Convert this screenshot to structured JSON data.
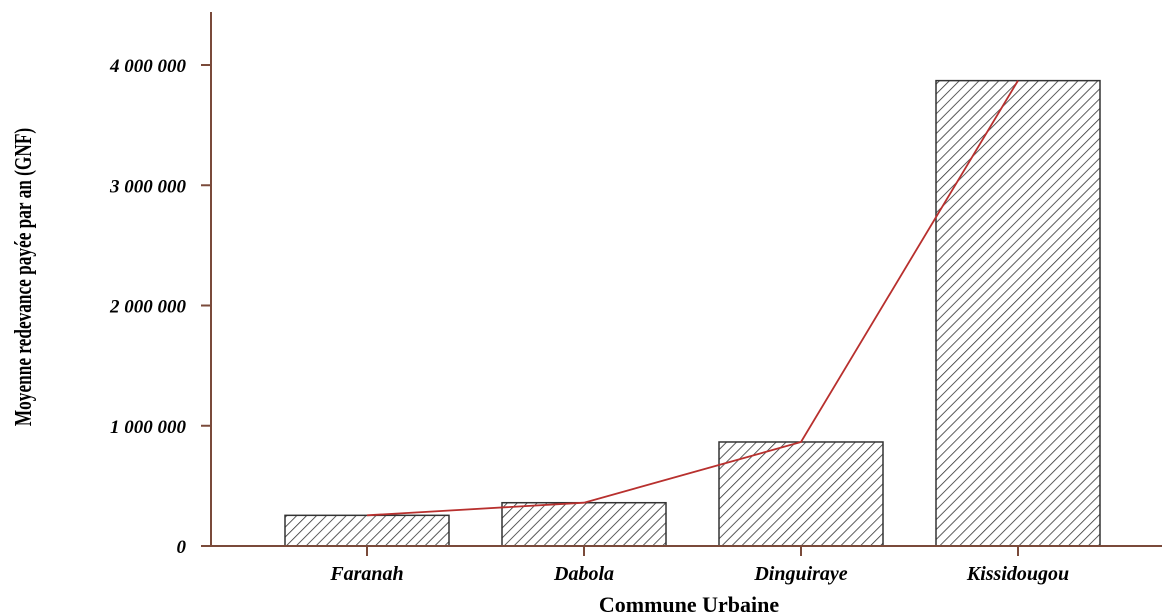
{
  "chart_data": {
    "type": "bar",
    "categories": [
      "Faranah",
      "Dabola",
      "Dinguiraye",
      "Kissidougou"
    ],
    "values": [
      255000,
      360000,
      865000,
      3870000
    ],
    "trend_line": true,
    "title": "",
    "xlabel": "Commune Urbaine",
    "ylabel": "Moyenne redevance payée par an (GNF)",
    "ylim": [
      0,
      4500000
    ],
    "yticks": [
      0,
      1000000,
      2000000,
      3000000,
      4000000
    ],
    "ytick_labels": [
      "0",
      "1 000 000",
      "2 000 000",
      "3 000 000",
      "4 000 000"
    ],
    "grid": false,
    "bar_fill": "diagonal hatch",
    "colors": {
      "axis": "#7a4a3a",
      "line": "#b8302e",
      "bar_stroke": "#333333",
      "hatch": "#333333"
    }
  }
}
